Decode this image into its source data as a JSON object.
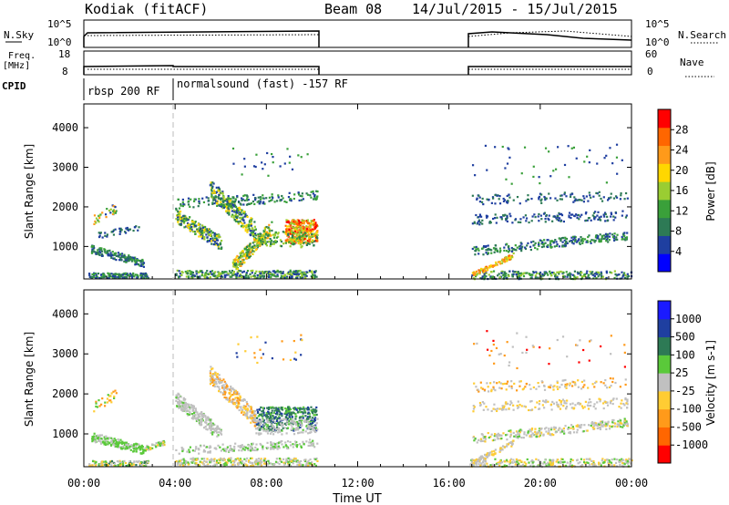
{
  "header": {
    "station": "Kodiak (fitACF)",
    "beam": "Beam 08",
    "dates": "14/Jul/2015 - 15/Jul/2015"
  },
  "summary": {
    "nsky_label": "N.Sky",
    "nsky_top": "10^5",
    "nsky_bottom": "10^0",
    "nsearch_label": "N.Search",
    "nsearch_top": "10^5",
    "nsearch_bottom": "10^0",
    "freq_label_1": "Freq.",
    "freq_label_2": "[MHz]",
    "freq_top": "18",
    "freq_bottom": "8",
    "nave_top": "60",
    "nave_bottom": "0",
    "nave_label": "Nave",
    "cpid_label": "CPID",
    "cpid_1": "rbsp 200 RF",
    "cpid_2": "normalsound (fast) -157 RF"
  },
  "colors": {
    "power_scale": [
      "#0000ff",
      "#1f3fa0",
      "#2d7a55",
      "#3aa03a",
      "#9acd32",
      "#ffd700",
      "#ff9a1a",
      "#ff6600",
      "#ff0000"
    ],
    "velocity_scale": [
      "#1a1aff",
      "#1f3fa0",
      "#2d7a55",
      "#5ac93a",
      "#c0c0c0",
      "#ffcc33",
      "#ff9a1a",
      "#ff6600",
      "#ff0000"
    ]
  },
  "chart_data": [
    {
      "type": "heatmap",
      "panel": "power",
      "xlabel": "",
      "ylabel": "Slant Range [km]",
      "xlim": [
        0,
        24
      ],
      "ylim": [
        180,
        4600
      ],
      "yticks": [
        1000,
        2000,
        3000,
        4000
      ],
      "colorbar": {
        "label": "Power [dB]",
        "ticks": [
          "4",
          "8",
          "12",
          "16",
          "20",
          "24",
          "28"
        ],
        "range": [
          0,
          30
        ]
      },
      "data_gaps": [
        [
          10.2,
          16.9
        ]
      ],
      "scatter_regions": [
        {
          "t": [
            0.2,
            2.8
          ],
          "r": [
            200,
            2200
          ],
          "dominant": "green/blue"
        },
        {
          "t": [
            4.0,
            10.2
          ],
          "r": [
            300,
            2700
          ],
          "dominant": "green/yellow"
        },
        {
          "t": [
            8.8,
            10.2
          ],
          "r": [
            1100,
            1700
          ],
          "dominant": "orange/red"
        },
        {
          "t": [
            16.9,
            24.0
          ],
          "r": [
            200,
            3600
          ],
          "dominant": "blue/green"
        }
      ]
    },
    {
      "type": "heatmap",
      "panel": "velocity",
      "xlabel": "Time UT",
      "ylabel": "Slant Range [km]",
      "xlim": [
        0,
        24
      ],
      "ylim": [
        180,
        4600
      ],
      "xticks": [
        "00:00",
        "04:00",
        "08:00",
        "12:00",
        "16:00",
        "20:00",
        "00:00"
      ],
      "yticks": [
        1000,
        2000,
        3000,
        4000
      ],
      "colorbar": {
        "label": "Velocity [m s-1]",
        "ticks": [
          "1000",
          "500",
          "100",
          "25",
          "-25",
          "-100",
          "-500",
          "-1000"
        ]
      },
      "data_gaps": [
        [
          10.2,
          16.9
        ]
      ],
      "scatter_regions": [
        {
          "t": [
            0.2,
            3.5
          ],
          "r": [
            500,
            1300
          ],
          "dominant": "green"
        },
        {
          "t": [
            4.0,
            10.2
          ],
          "r": [
            600,
            2500
          ],
          "dominant": "grey"
        },
        {
          "t": [
            7.5,
            10.2
          ],
          "r": [
            1100,
            1700
          ],
          "dominant": "dark green"
        },
        {
          "t": [
            16.9,
            24.0
          ],
          "r": [
            200,
            3600
          ],
          "dominant": "grey"
        }
      ]
    }
  ]
}
